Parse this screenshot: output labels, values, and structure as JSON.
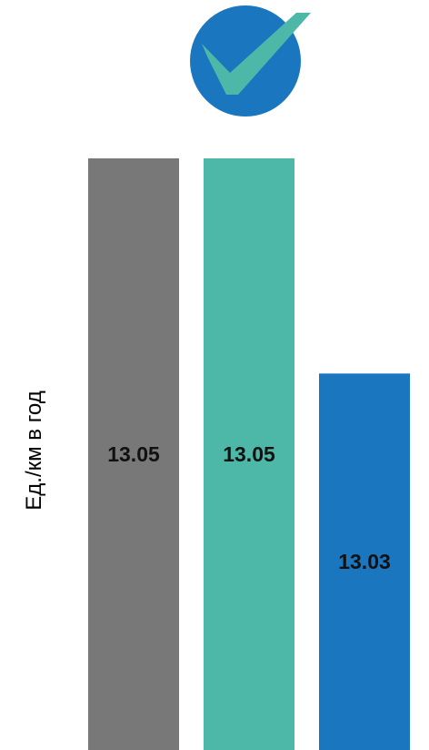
{
  "chart_data": {
    "type": "bar",
    "title": "",
    "xlabel": "",
    "ylabel": "Ед./км в год",
    "categories": [
      "",
      "",
      ""
    ],
    "values": [
      13.05,
      13.05,
      13.03
    ],
    "value_labels": [
      "13.05",
      "13.05",
      "13.03"
    ],
    "bar_colors": [
      "#787878",
      "#4db8a8",
      "#1a77bf"
    ],
    "ylim": [
      12.995,
      13.05
    ],
    "grid": false,
    "legend": "none"
  },
  "badge": {
    "icon": "checkmark-icon",
    "circle_color": "#1a77bf",
    "check_color": "#4db8a8"
  }
}
